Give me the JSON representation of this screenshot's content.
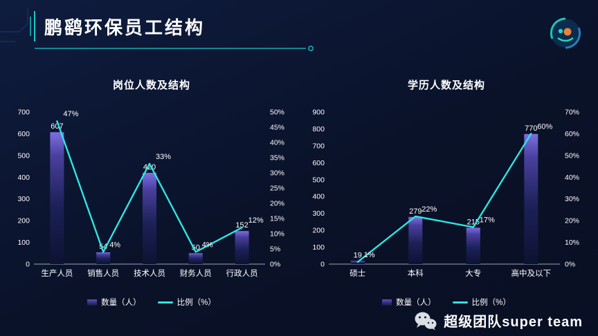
{
  "header": {
    "title": "鹏鹞环保员工结构"
  },
  "footer": {
    "brand": "超级团队super team"
  },
  "colors": {
    "background": "#0b1530",
    "accent_line": "#19c8c8",
    "bar_gradient_top": "#7e6fe2",
    "bar_gradient_bottom": "#0d1232",
    "trend_line": "#2ee6e0",
    "text": "#ffffff"
  },
  "chart_data": [
    {
      "type": "bar",
      "subtype": "combo bar+line, dual axis",
      "title": "岗位人数及结构",
      "categories": [
        "生产人员",
        "销售人员",
        "技术人员",
        "财务人员",
        "行政人员"
      ],
      "series": [
        {
          "name": "数量（人）",
          "type": "bar",
          "axis": "left",
          "values": [
            607,
            54,
            420,
            50,
            152
          ],
          "labels": [
            "607",
            "54",
            "420",
            "50",
            "152"
          ]
        },
        {
          "name": "比例（%）",
          "type": "line",
          "axis": "right",
          "values": [
            47,
            4,
            33,
            4,
            12
          ],
          "labels": [
            "47%",
            "4%",
            "33%",
            "4%",
            "12%"
          ]
        }
      ],
      "left_axis": {
        "min": 0,
        "max": 700,
        "ticks": [
          "0",
          "100",
          "200",
          "300",
          "400",
          "500",
          "600",
          "700"
        ]
      },
      "right_axis": {
        "min": 0,
        "max": 50,
        "ticks": [
          "0%",
          "5%",
          "10%",
          "15%",
          "20%",
          "25%",
          "30%",
          "35%",
          "40%",
          "45%",
          "50%"
        ]
      },
      "grid": false,
      "legend_position": "bottom"
    },
    {
      "type": "bar",
      "subtype": "combo bar+line, dual axis",
      "title": "学历人数及结构",
      "categories": [
        "硕士",
        "本科",
        "大专",
        "高中及以下"
      ],
      "series": [
        {
          "name": "数量（人）",
          "type": "bar",
          "axis": "left",
          "values": [
            19,
            279,
            215,
            770
          ],
          "labels": [
            "19",
            "279",
            "215",
            "770"
          ]
        },
        {
          "name": "比例（%）",
          "type": "line",
          "axis": "right",
          "values": [
            1,
            22,
            17,
            60
          ],
          "labels": [
            "1%",
            "22%",
            "17%",
            "60%"
          ]
        }
      ],
      "left_axis": {
        "min": 0,
        "max": 900,
        "ticks": [
          "0",
          "100",
          "200",
          "300",
          "400",
          "500",
          "600",
          "700",
          "800",
          "900"
        ]
      },
      "right_axis": {
        "min": 0,
        "max": 70,
        "ticks": [
          "0%",
          "10%",
          "20%",
          "30%",
          "40%",
          "50%",
          "60%",
          "70%"
        ]
      },
      "grid": false,
      "legend_position": "bottom"
    }
  ]
}
